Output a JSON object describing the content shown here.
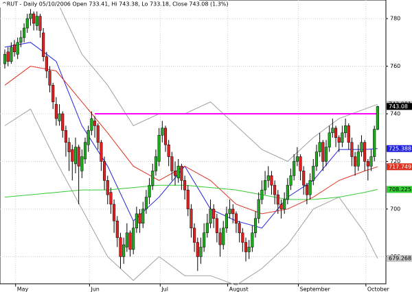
{
  "chart_data": {
    "type": "candlestick",
    "title": "^RUT - Daily 05/10/2006 Open 733.41, Hi 743.38, Lo 733.18, Close 743.08 (1.3%)",
    "categories": [
      null,
      null,
      null,
      null,
      "May",
      null,
      null,
      null,
      null,
      null,
      null,
      null,
      null,
      null,
      null,
      null,
      null,
      null,
      null,
      null,
      null,
      null,
      null,
      null,
      null,
      null,
      null,
      "Jun",
      null,
      null,
      null,
      null,
      null,
      null,
      null,
      null,
      null,
      null,
      null,
      null,
      null,
      null,
      null,
      null,
      null,
      null,
      null,
      null,
      null,
      "Jul",
      null,
      null,
      null,
      null,
      null,
      null,
      null,
      null,
      null,
      null,
      null,
      null,
      null,
      null,
      null,
      null,
      null,
      null,
      null,
      null,
      "August",
      null,
      null,
      null,
      null,
      null,
      null,
      null,
      null,
      null,
      null,
      null,
      null,
      null,
      null,
      null,
      null,
      null,
      null,
      null,
      null,
      null,
      "September",
      null,
      null,
      null,
      null,
      null,
      null,
      null,
      null,
      null,
      null,
      null,
      null,
      null,
      null,
      null,
      null,
      null,
      null,
      null,
      null,
      "October",
      null,
      null,
      null
    ],
    "candles": [
      [
        761,
        767,
        759,
        765
      ],
      [
        766,
        768,
        760,
        762
      ],
      [
        762,
        770,
        761,
        768
      ],
      [
        769,
        771,
        764,
        766
      ],
      [
        765,
        772,
        763,
        770
      ],
      [
        770,
        775,
        768,
        772
      ],
      [
        772,
        778,
        770,
        776
      ],
      [
        776,
        782,
        774,
        780
      ],
      [
        780,
        784,
        777,
        782
      ],
      [
        782,
        783,
        775,
        778
      ],
      [
        777,
        783,
        775,
        781
      ],
      [
        781,
        782,
        772,
        775
      ],
      [
        774,
        776,
        762,
        764
      ],
      [
        764,
        766,
        755,
        758
      ],
      [
        758,
        760,
        749,
        752
      ],
      [
        752,
        753,
        742,
        745
      ],
      [
        744,
        747,
        735,
        738
      ],
      [
        737,
        744,
        735,
        740
      ],
      [
        740,
        741,
        730,
        733
      ],
      [
        733,
        735,
        722,
        728
      ],
      [
        728,
        730,
        716,
        724
      ],
      [
        725,
        727,
        712,
        720
      ],
      [
        719,
        730,
        715,
        726
      ],
      [
        726,
        727,
        702,
        718
      ],
      [
        716,
        725,
        713,
        722
      ],
      [
        721,
        730,
        719,
        728
      ],
      [
        727,
        735,
        724,
        733
      ],
      [
        733,
        741,
        731,
        738
      ],
      [
        737,
        739,
        730,
        735
      ],
      [
        735,
        736,
        725,
        728
      ],
      [
        728,
        729,
        716,
        720
      ],
      [
        720,
        722,
        708,
        712
      ],
      [
        712,
        714,
        702,
        706
      ],
      [
        707,
        709,
        698,
        702
      ],
      [
        702,
        704,
        690,
        695
      ],
      [
        695,
        697,
        684,
        688
      ],
      [
        688,
        690,
        675,
        680
      ],
      [
        680,
        688,
        677,
        685
      ],
      [
        684,
        694,
        682,
        690
      ],
      [
        690,
        691,
        680,
        683
      ],
      [
        683,
        695,
        681,
        692
      ],
      [
        692,
        701,
        690,
        698
      ],
      [
        698,
        700,
        690,
        694
      ],
      [
        694,
        703,
        692,
        700
      ],
      [
        700,
        708,
        698,
        705
      ],
      [
        705,
        713,
        702,
        710
      ],
      [
        710,
        719,
        708,
        716
      ],
      [
        716,
        725,
        714,
        722
      ],
      [
        720,
        734,
        718,
        731
      ],
      [
        731,
        737,
        728,
        734
      ],
      [
        734,
        735,
        724,
        727
      ],
      [
        727,
        729,
        718,
        722
      ],
      [
        722,
        724,
        712,
        716
      ],
      [
        716,
        720,
        710,
        714
      ],
      [
        713,
        721,
        711,
        718
      ],
      [
        718,
        719,
        708,
        712
      ],
      [
        712,
        714,
        704,
        708
      ],
      [
        708,
        710,
        697,
        700
      ],
      [
        700,
        702,
        688,
        692
      ],
      [
        692,
        694,
        682,
        686
      ],
      [
        686,
        688,
        674,
        680
      ],
      [
        680,
        688,
        677,
        684
      ],
      [
        684,
        694,
        682,
        690
      ],
      [
        690,
        698,
        688,
        694
      ],
      [
        694,
        704,
        692,
        700
      ],
      [
        700,
        702,
        692,
        696
      ],
      [
        696,
        698,
        686,
        690
      ],
      [
        690,
        692,
        680,
        685
      ],
      [
        685,
        695,
        683,
        692
      ],
      [
        692,
        701,
        690,
        698
      ],
      [
        698,
        704,
        696,
        700
      ],
      [
        700,
        702,
        694,
        698
      ],
      [
        698,
        699,
        690,
        694
      ],
      [
        694,
        695,
        686,
        690
      ],
      [
        690,
        692,
        682,
        686
      ],
      [
        686,
        688,
        678,
        682
      ],
      [
        682,
        687,
        679,
        684
      ],
      [
        684,
        693,
        682,
        690
      ],
      [
        690,
        699,
        688,
        696
      ],
      [
        696,
        707,
        694,
        704
      ],
      [
        704,
        712,
        702,
        708
      ],
      [
        708,
        716,
        706,
        712
      ],
      [
        712,
        718,
        709,
        714
      ],
      [
        714,
        716,
        706,
        710
      ],
      [
        710,
        712,
        702,
        706
      ],
      [
        706,
        708,
        698,
        702
      ],
      [
        702,
        704,
        696,
        700
      ],
      [
        700,
        707,
        698,
        704
      ],
      [
        704,
        713,
        702,
        710
      ],
      [
        710,
        717,
        708,
        714
      ],
      [
        714,
        723,
        712,
        720
      ],
      [
        720,
        726,
        718,
        722
      ],
      [
        722,
        723,
        712,
        716
      ],
      [
        716,
        718,
        706,
        710
      ],
      [
        710,
        711,
        702,
        706
      ],
      [
        706,
        715,
        704,
        712
      ],
      [
        712,
        721,
        710,
        718
      ],
      [
        718,
        727,
        716,
        724
      ],
      [
        724,
        732,
        722,
        728
      ],
      [
        728,
        729,
        716,
        720
      ],
      [
        720,
        729,
        718,
        726
      ],
      [
        726,
        735,
        724,
        732
      ],
      [
        732,
        738,
        730,
        734
      ],
      [
        734,
        735,
        726,
        730
      ],
      [
        730,
        731,
        724,
        728
      ],
      [
        728,
        735,
        726,
        732
      ],
      [
        732,
        738,
        730,
        735
      ],
      [
        735,
        736,
        725,
        728
      ],
      [
        728,
        730,
        718,
        722
      ],
      [
        722,
        724,
        714,
        718
      ],
      [
        718,
        727,
        716,
        724
      ],
      [
        724,
        731,
        722,
        728
      ],
      [
        728,
        729,
        716,
        720
      ],
      [
        720,
        721,
        712,
        718
      ],
      [
        718,
        725,
        716,
        722
      ],
      [
        722,
        735,
        720,
        733.5
      ],
      [
        733.41,
        743.38,
        733.18,
        743.08
      ]
    ],
    "up_color": "#22aa22",
    "down_color": "#dd2222",
    "overlays": [
      {
        "color": "#a0a0a0",
        "x": [
          0,
          8,
          16,
          24,
          32,
          40,
          48,
          56,
          64,
          72,
          80,
          88,
          96,
          104,
          112,
          116
        ],
        "values": [
          790,
          792,
          788,
          765,
          752,
          735,
          740,
          740,
          745,
          735,
          725,
          720,
          730,
          738,
          742,
          743.981
        ],
        "tag_bg": "#c8c8c8",
        "tag_fg": "#000000"
      },
      {
        "color": "#a0a0a0",
        "x": [
          0,
          8,
          16,
          24,
          32,
          40,
          48,
          56,
          64,
          72,
          80,
          88,
          96,
          104,
          112,
          116
        ],
        "values": [
          735,
          742,
          720,
          700,
          680,
          670,
          680,
          672,
          672,
          668,
          675,
          685,
          700,
          705,
          690,
          679.268
        ],
        "tag_bg": "#c8c8c8",
        "tag_fg": "#000000"
      },
      {
        "color": "#2222dd",
        "x": [
          0,
          8,
          16,
          24,
          32,
          40,
          48,
          56,
          64,
          72,
          80,
          88,
          96,
          104,
          112,
          116
        ],
        "values": [
          768,
          770,
          762,
          735,
          718,
          695,
          705,
          718,
          700,
          695,
          692,
          705,
          712,
          725,
          725,
          725.388
        ],
        "tag_bg": "#2222dd",
        "tag_fg": "#ffffff"
      },
      {
        "color": "#e03020",
        "x": [
          0,
          8,
          16,
          24,
          32,
          40,
          48,
          56,
          64,
          72,
          80,
          88,
          96,
          104,
          112,
          116
        ],
        "values": [
          752,
          760,
          758,
          745,
          732,
          718,
          712,
          718,
          712,
          702,
          698,
          700,
          705,
          712,
          716,
          717.749
        ],
        "tag_bg": "#e03020",
        "tag_fg": "#ffffff"
      },
      {
        "color": "#33cc33",
        "x": [
          0,
          8,
          16,
          24,
          32,
          40,
          48,
          56,
          64,
          72,
          80,
          88,
          96,
          104,
          112,
          116
        ],
        "values": [
          705,
          706,
          707,
          708,
          708,
          709,
          710,
          710,
          709,
          708,
          706,
          704,
          704,
          705,
          707,
          708.225
        ],
        "tag_bg": "#33cc33",
        "tag_fg": "#000000"
      }
    ],
    "hline": {
      "value": 740,
      "color": "#ff00ff",
      "start": 28
    },
    "ylim": [
      668.6,
      787.8
    ],
    "yticks": [
      680,
      700,
      720,
      740,
      760,
      780
    ],
    "grid": true
  }
}
